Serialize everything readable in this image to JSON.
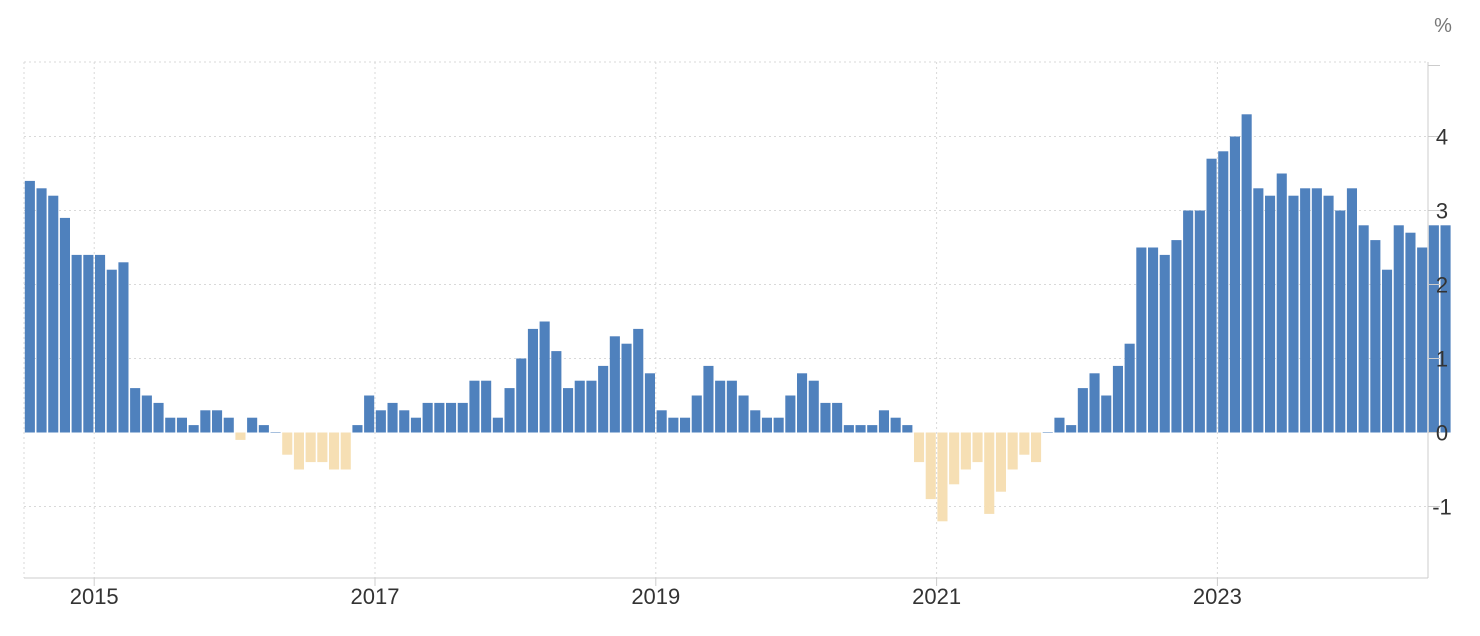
{
  "chart_data": {
    "type": "bar",
    "title": "",
    "xlabel": "",
    "ylabel": "",
    "unit": "%",
    "ylim": [
      -2,
      5
    ],
    "y_ticks": [
      -1,
      0,
      1,
      2,
      3,
      4
    ],
    "y_tick_labels": [
      "-1",
      "0",
      "1",
      "2",
      "3",
      "4"
    ],
    "x_ticks": [
      "2015-01",
      "2017-01",
      "2019-01",
      "2021-01",
      "2023-01"
    ],
    "x_tick_labels": [
      "2015",
      "2017",
      "2019",
      "2021",
      "2023"
    ],
    "start_month": "2014-07",
    "frequency": "monthly",
    "grid": true,
    "positive_color": "#4f81bd",
    "negative_color": "#f6dfb4",
    "values": [
      3.4,
      3.3,
      3.2,
      2.9,
      2.4,
      2.4,
      2.4,
      2.2,
      2.3,
      0.6,
      0.5,
      0.4,
      0.2,
      0.2,
      0.1,
      0.3,
      0.3,
      0.2,
      -0.1,
      0.2,
      0.1,
      0.0,
      -0.3,
      -0.5,
      -0.4,
      -0.4,
      -0.5,
      -0.5,
      0.1,
      0.5,
      0.3,
      0.4,
      0.3,
      0.2,
      0.4,
      0.4,
      0.4,
      0.4,
      0.7,
      0.7,
      0.2,
      0.6,
      1.0,
      1.4,
      1.5,
      1.1,
      0.6,
      0.7,
      0.7,
      0.9,
      1.3,
      1.2,
      1.4,
      0.8,
      0.3,
      0.2,
      0.2,
      0.5,
      0.9,
      0.7,
      0.7,
      0.5,
      0.3,
      0.2,
      0.2,
      0.5,
      0.8,
      0.7,
      0.4,
      0.4,
      0.1,
      0.1,
      0.1,
      0.3,
      0.2,
      0.1,
      -0.4,
      -0.9,
      -1.2,
      -0.7,
      -0.5,
      -0.4,
      -1.1,
      -0.8,
      -0.5,
      -0.3,
      -0.4,
      0.0,
      0.2,
      0.1,
      0.6,
      0.8,
      0.5,
      0.9,
      1.2,
      2.5,
      2.5,
      2.4,
      2.6,
      3.0,
      3.0,
      3.7,
      3.8,
      4.0,
      4.3,
      3.3,
      3.2,
      3.5,
      3.2,
      3.3,
      3.3,
      3.2,
      3.0,
      3.3,
      2.8,
      2.6,
      2.2,
      2.8,
      2.7,
      2.5,
      2.8,
      2.8
    ]
  }
}
